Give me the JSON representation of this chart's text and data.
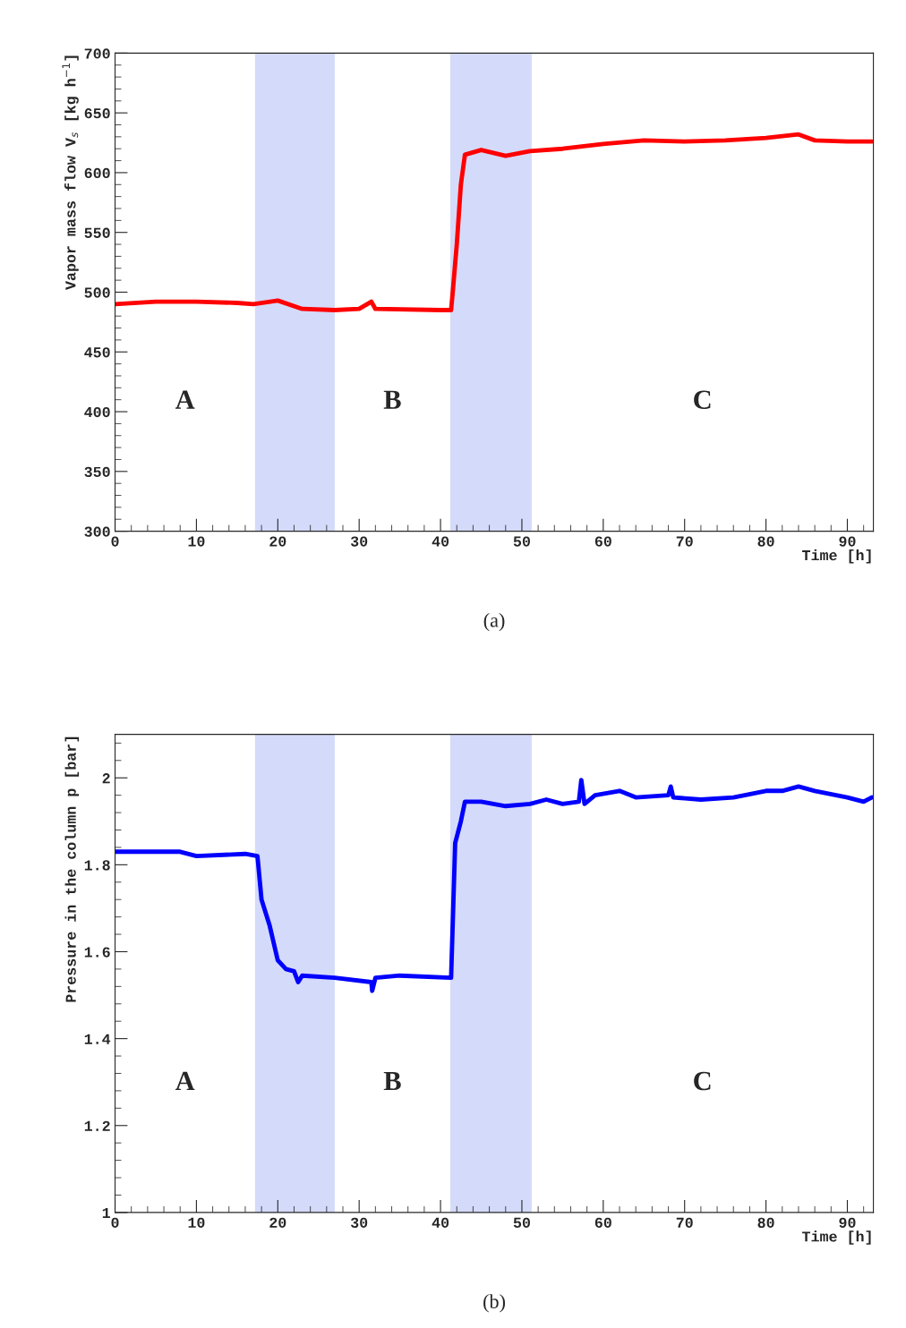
{
  "chart_data": [
    {
      "type": "line",
      "xlabel": "Time [h]",
      "ylabel": "Vapor mass flow V$_{s}$ [kg h$^{−1}$]",
      "x": [
        0,
        5,
        10,
        15,
        17,
        20,
        23,
        27,
        30,
        31.5,
        32,
        40,
        41.3,
        41.5,
        42,
        42.5,
        43,
        45,
        48,
        51,
        55,
        60,
        65,
        70,
        75,
        80,
        84,
        86,
        90,
        93
      ],
      "series": [
        {
          "color": "#ff0000",
          "values": [
            490,
            492,
            492,
            491,
            490,
            493,
            486,
            485,
            486,
            492,
            486,
            485,
            485,
            500,
            540,
            590,
            615,
            619,
            614,
            618,
            620,
            624,
            627,
            626,
            627,
            629,
            632,
            627,
            626,
            626
          ]
        }
      ],
      "xlim": [
        0,
        93.2
      ],
      "ylim": [
        300,
        700
      ],
      "xticks": [
        0,
        {
          "value": 2,
          "label": null
        },
        {
          "value": 4,
          "label": null
        },
        {
          "value": 6,
          "label": null
        },
        {
          "value": 8,
          "label": null
        },
        10,
        {
          "value": 12,
          "label": null
        },
        {
          "value": 14,
          "label": null
        },
        {
          "value": 16,
          "label": null
        },
        {
          "value": 18,
          "label": null
        },
        20,
        {
          "value": 22,
          "label": null
        },
        {
          "value": 24,
          "label": null
        },
        {
          "value": 26,
          "label": null
        },
        {
          "value": 28,
          "label": null
        },
        30,
        {
          "value": 32,
          "label": null
        },
        {
          "value": 34,
          "label": null
        },
        {
          "value": 36,
          "label": null
        },
        {
          "value": 38,
          "label": null
        },
        40,
        {
          "value": 42,
          "label": null
        },
        {
          "value": 44,
          "label": null
        },
        {
          "value": 46,
          "label": null
        },
        {
          "value": 48,
          "label": null
        },
        50,
        {
          "value": 52,
          "label": null
        },
        {
          "value": 54,
          "label": null
        },
        {
          "value": 56,
          "label": null
        },
        {
          "value": 58,
          "label": null
        },
        60,
        {
          "value": 62,
          "label": null
        },
        {
          "value": 64,
          "label": null
        },
        {
          "value": 66,
          "label": null
        },
        {
          "value": 68,
          "label": null
        },
        70,
        {
          "value": 72,
          "label": null
        },
        {
          "value": 74,
          "label": null
        },
        {
          "value": 76,
          "label": null
        },
        {
          "value": 78,
          "label": null
        },
        80,
        {
          "value": 82,
          "label": null
        },
        {
          "value": 84,
          "label": null
        },
        {
          "value": 86,
          "label": null
        },
        {
          "value": 88,
          "label": null
        },
        90,
        {
          "value": 92,
          "label": null
        }
      ],
      "yticks": [
        300,
        {
          "value": 310,
          "label": null
        },
        {
          "value": 320,
          "label": null
        },
        {
          "value": 330,
          "label": null
        },
        {
          "value": 340,
          "label": null
        },
        350,
        {
          "value": 360,
          "label": null
        },
        {
          "value": 370,
          "label": null
        },
        {
          "value": 380,
          "label": null
        },
        {
          "value": 390,
          "label": null
        },
        400,
        {
          "value": 410,
          "label": null
        },
        {
          "value": 420,
          "label": null
        },
        {
          "value": 430,
          "label": null
        },
        {
          "value": 440,
          "label": null
        },
        450,
        {
          "value": 460,
          "label": null
        },
        {
          "value": 470,
          "label": null
        },
        {
          "value": 480,
          "label": null
        },
        {
          "value": 490,
          "label": null
        },
        500,
        {
          "value": 510,
          "label": null
        },
        {
          "value": 520,
          "label": null
        },
        {
          "value": 530,
          "label": null
        },
        {
          "value": 540,
          "label": null
        },
        550,
        {
          "value": 560,
          "label": null
        },
        {
          "value": 570,
          "label": null
        },
        {
          "value": 580,
          "label": null
        },
        {
          "value": 590,
          "label": null
        },
        600,
        {
          "value": 610,
          "label": null
        },
        {
          "value": 620,
          "label": null
        },
        {
          "value": 630,
          "label": null
        },
        {
          "value": 640,
          "label": null
        },
        650,
        {
          "value": 660,
          "label": null
        },
        {
          "value": 670,
          "label": null
        },
        {
          "value": 680,
          "label": null
        },
        {
          "value": 690,
          "label": null
        },
        700
      ],
      "bands": [
        {
          "axis": "x",
          "from": 17.2,
          "to": 27,
          "color": "#d4dafa"
        },
        {
          "axis": "x",
          "from": 41.2,
          "to": 51.2,
          "color": "#d4dafa"
        }
      ],
      "annotations": [
        "A",
        "B",
        "C",
        "(a)"
      ],
      "grid": false
    },
    {
      "type": "line",
      "xlabel": "Time [h]",
      "ylabel": "Pressure in the column p [bar]",
      "x": [
        0,
        5,
        8,
        10,
        16,
        17.5,
        18,
        19,
        20,
        21,
        22,
        22.5,
        23,
        27,
        31.5,
        31.6,
        32,
        35,
        41.3,
        41.8,
        42.5,
        43,
        45,
        48,
        51,
        53,
        55,
        57,
        57.3,
        57.7,
        59,
        62,
        64,
        68,
        68.3,
        68.6,
        72,
        76,
        80,
        82,
        84,
        86,
        90,
        92,
        93
      ],
      "series": [
        {
          "color": "#0000ff",
          "values": [
            1.83,
            1.83,
            1.83,
            1.82,
            1.825,
            1.82,
            1.72,
            1.66,
            1.58,
            1.56,
            1.555,
            1.53,
            1.545,
            1.54,
            1.53,
            1.51,
            1.54,
            1.545,
            1.54,
            1.85,
            1.9,
            1.945,
            1.945,
            1.935,
            1.94,
            1.95,
            1.94,
            1.945,
            1.995,
            1.94,
            1.96,
            1.97,
            1.955,
            1.96,
            1.98,
            1.955,
            1.95,
            1.955,
            1.97,
            1.97,
            1.98,
            1.97,
            1.955,
            1.945,
            1.955
          ]
        }
      ],
      "xlim": [
        0,
        93.2
      ],
      "ylim": [
        1,
        2.1
      ],
      "xticks": [
        0,
        {
          "value": 2,
          "label": null
        },
        {
          "value": 4,
          "label": null
        },
        {
          "value": 6,
          "label": null
        },
        {
          "value": 8,
          "label": null
        },
        10,
        {
          "value": 12,
          "label": null
        },
        {
          "value": 14,
          "label": null
        },
        {
          "value": 16,
          "label": null
        },
        {
          "value": 18,
          "label": null
        },
        20,
        {
          "value": 22,
          "label": null
        },
        {
          "value": 24,
          "label": null
        },
        {
          "value": 26,
          "label": null
        },
        {
          "value": 28,
          "label": null
        },
        30,
        {
          "value": 32,
          "label": null
        },
        {
          "value": 34,
          "label": null
        },
        {
          "value": 36,
          "label": null
        },
        {
          "value": 38,
          "label": null
        },
        40,
        {
          "value": 42,
          "label": null
        },
        {
          "value": 44,
          "label": null
        },
        {
          "value": 46,
          "label": null
        },
        {
          "value": 48,
          "label": null
        },
        50,
        {
          "value": 52,
          "label": null
        },
        {
          "value": 54,
          "label": null
        },
        {
          "value": 56,
          "label": null
        },
        {
          "value": 58,
          "label": null
        },
        60,
        {
          "value": 62,
          "label": null
        },
        {
          "value": 64,
          "label": null
        },
        {
          "value": 66,
          "label": null
        },
        {
          "value": 68,
          "label": null
        },
        70,
        {
          "value": 72,
          "label": null
        },
        {
          "value": 74,
          "label": null
        },
        {
          "value": 76,
          "label": null
        },
        {
          "value": 78,
          "label": null
        },
        80,
        {
          "value": 82,
          "label": null
        },
        {
          "value": 84,
          "label": null
        },
        {
          "value": 86,
          "label": null
        },
        {
          "value": 88,
          "label": null
        },
        90,
        {
          "value": 92,
          "label": null
        }
      ],
      "yticks": [
        1,
        {
          "value": 1.04,
          "label": null
        },
        {
          "value": 1.08,
          "label": null
        },
        {
          "value": 1.12,
          "label": null
        },
        {
          "value": 1.16,
          "label": null
        },
        1.2,
        {
          "value": 1.24,
          "label": null
        },
        {
          "value": 1.28,
          "label": null
        },
        {
          "value": 1.32,
          "label": null
        },
        {
          "value": 1.36,
          "label": null
        },
        1.4,
        {
          "value": 1.44,
          "label": null
        },
        {
          "value": 1.48,
          "label": null
        },
        {
          "value": 1.52,
          "label": null
        },
        {
          "value": 1.56,
          "label": null
        },
        1.6,
        {
          "value": 1.64,
          "label": null
        },
        {
          "value": 1.68,
          "label": null
        },
        {
          "value": 1.72,
          "label": null
        },
        {
          "value": 1.76,
          "label": null
        },
        1.8,
        {
          "value": 1.84,
          "label": null
        },
        {
          "value": 1.88,
          "label": null
        },
        {
          "value": 1.92,
          "label": null
        },
        {
          "value": 1.96,
          "label": null
        },
        2,
        {
          "value": 2.04,
          "label": null
        },
        {
          "value": 2.08,
          "label": null
        }
      ],
      "bands": [
        {
          "axis": "x",
          "from": 17.2,
          "to": 27,
          "color": "#d4dafa"
        },
        {
          "axis": "x",
          "from": 41.2,
          "to": 51.2,
          "color": "#d4dafa"
        }
      ],
      "annotations": [
        "A",
        "B",
        "C",
        "(b)"
      ],
      "grid": false
    }
  ]
}
